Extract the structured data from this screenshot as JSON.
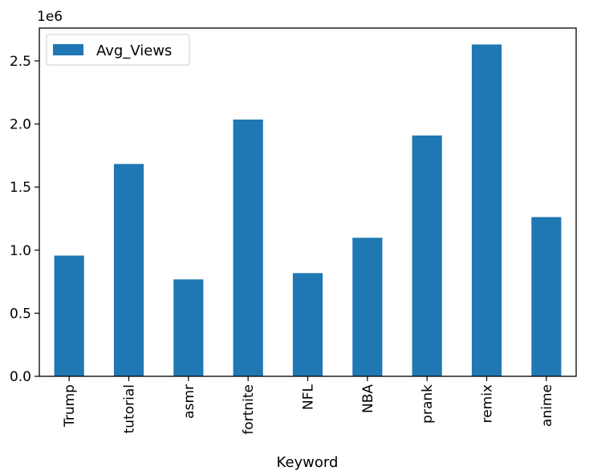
{
  "chart_data": {
    "type": "bar",
    "title": "",
    "xlabel": "Keyword",
    "ylabel": "",
    "y_offset_label": "1e6",
    "categories": [
      "Trump",
      "tutorial",
      "asmr",
      "fortnite",
      "NFL",
      "NBA",
      "prank",
      "remix",
      "anime"
    ],
    "series": [
      {
        "name": "Avg_Views",
        "color": "#1f77b4",
        "values": [
          957000,
          1683000,
          768000,
          2035000,
          818000,
          1098000,
          1909000,
          2630000,
          1262000
        ]
      }
    ],
    "ylim": [
      0,
      2760000
    ],
    "yticks": [
      0,
      500000,
      1000000,
      1500000,
      2000000,
      2500000
    ],
    "ytick_labels": [
      "0.0",
      "0.5",
      "1.0",
      "1.5",
      "2.0",
      "2.5"
    ],
    "legend_position": "top-left",
    "grid": false
  }
}
